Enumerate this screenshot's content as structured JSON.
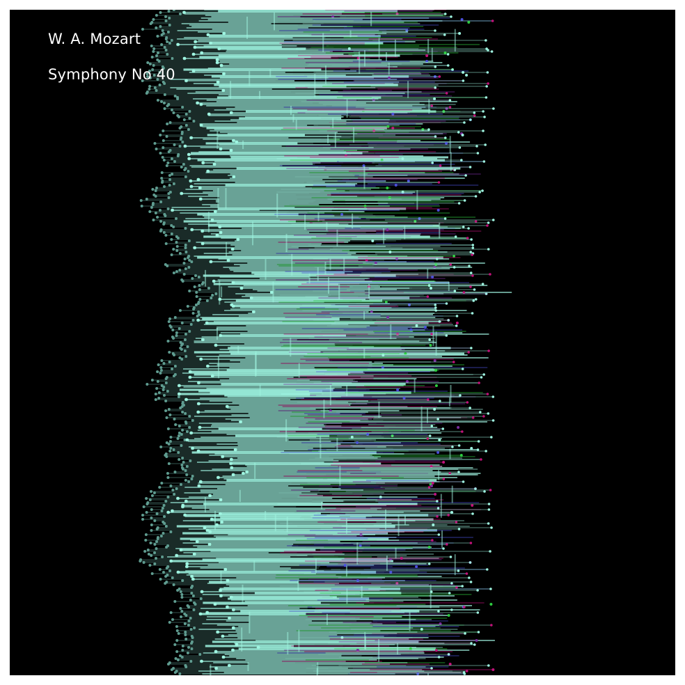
{
  "artwork": {
    "composer": "W. A. Mozart",
    "piece": "Symphony No 40"
  },
  "colors": {
    "background": "#000000",
    "frame": "#ffffff",
    "primary_line": "#9ff5e1",
    "dim_line": "#5f9c90",
    "accent_green": "#2ecc40",
    "accent_blue": "#4a4fd9",
    "accent_magenta": "#c2127a",
    "accent_purple": "#7a2d9e"
  }
}
